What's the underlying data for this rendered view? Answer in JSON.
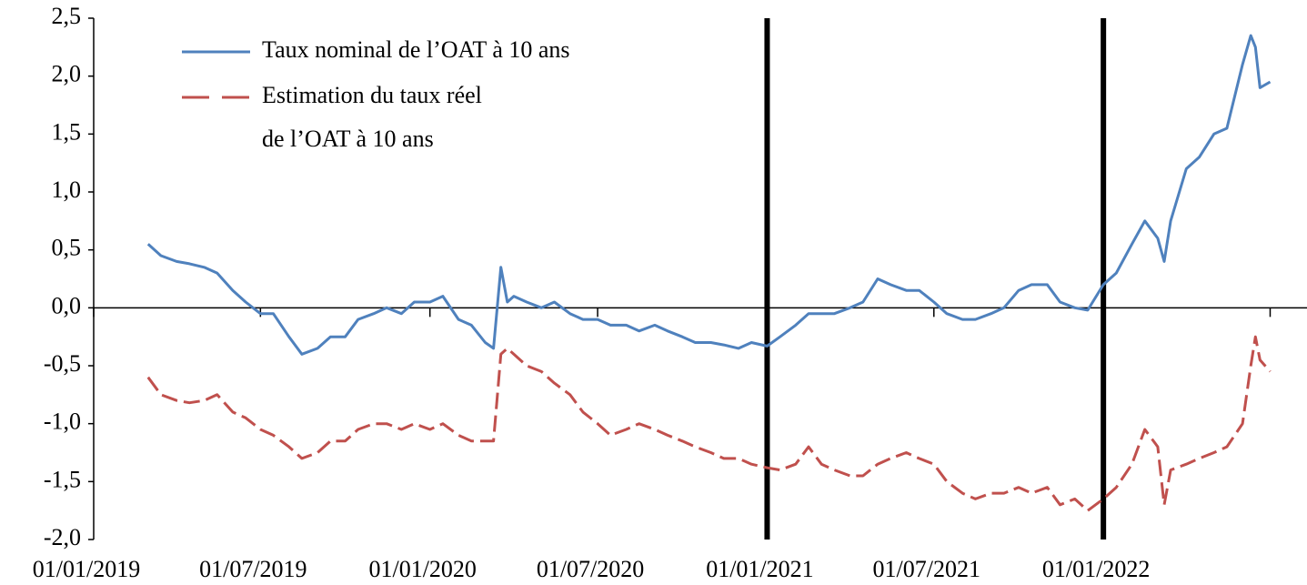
{
  "chart_data": {
    "type": "line",
    "x": [
      "01/03/2019",
      "15/03/2019",
      "01/04/2019",
      "15/04/2019",
      "01/05/2019",
      "15/05/2019",
      "01/06/2019",
      "15/06/2019",
      "01/07/2019",
      "15/07/2019",
      "01/08/2019",
      "15/08/2019",
      "01/09/2019",
      "15/09/2019",
      "01/10/2019",
      "15/10/2019",
      "01/11/2019",
      "15/11/2019",
      "01/12/2019",
      "15/12/2019",
      "01/01/2020",
      "15/01/2020",
      "01/02/2020",
      "15/02/2020",
      "01/03/2020",
      "10/03/2020",
      "18/03/2020",
      "25/03/2020",
      "01/04/2020",
      "15/04/2020",
      "01/05/2020",
      "15/05/2020",
      "01/06/2020",
      "15/06/2020",
      "01/07/2020",
      "15/07/2020",
      "01/08/2020",
      "15/08/2020",
      "01/09/2020",
      "15/09/2020",
      "01/10/2020",
      "15/10/2020",
      "01/11/2020",
      "15/11/2020",
      "01/12/2020",
      "15/12/2020",
      "01/01/2021",
      "15/01/2021",
      "01/02/2021",
      "15/02/2021",
      "01/03/2021",
      "15/03/2021",
      "01/04/2021",
      "15/04/2021",
      "01/05/2021",
      "15/05/2021",
      "01/06/2021",
      "15/06/2021",
      "01/07/2021",
      "15/07/2021",
      "01/08/2021",
      "15/08/2021",
      "01/09/2021",
      "15/09/2021",
      "01/10/2021",
      "15/10/2021",
      "01/11/2021",
      "15/11/2021",
      "01/12/2021",
      "15/12/2021",
      "01/01/2022",
      "15/01/2022",
      "01/02/2022",
      "15/02/2022",
      "01/03/2022",
      "08/03/2022",
      "15/03/2022",
      "01/04/2022",
      "15/04/2022",
      "01/05/2022",
      "15/05/2022",
      "01/06/2022",
      "10/06/2022",
      "15/06/2022",
      "20/06/2022",
      "01/07/2022"
    ],
    "series": [
      {
        "name": "Taux nominal de l’OAT à 10 ans",
        "color": "#4f81bd",
        "dashed": false,
        "values": [
          0.55,
          0.45,
          0.4,
          0.38,
          0.35,
          0.3,
          0.15,
          0.05,
          -0.05,
          -0.05,
          -0.25,
          -0.4,
          -0.35,
          -0.25,
          -0.25,
          -0.1,
          -0.05,
          0.0,
          -0.05,
          0.05,
          0.05,
          0.1,
          -0.1,
          -0.15,
          -0.3,
          -0.35,
          0.35,
          0.05,
          0.1,
          0.05,
          0.0,
          0.05,
          -0.05,
          -0.1,
          -0.1,
          -0.15,
          -0.15,
          -0.2,
          -0.15,
          -0.2,
          -0.25,
          -0.3,
          -0.3,
          -0.32,
          -0.35,
          -0.3,
          -0.33,
          -0.25,
          -0.15,
          -0.05,
          -0.05,
          -0.05,
          0.0,
          0.05,
          0.25,
          0.2,
          0.15,
          0.15,
          0.05,
          -0.05,
          -0.1,
          -0.1,
          -0.05,
          0.0,
          0.15,
          0.2,
          0.2,
          0.05,
          0.0,
          -0.02,
          0.2,
          0.3,
          0.55,
          0.75,
          0.6,
          0.4,
          0.75,
          1.2,
          1.3,
          1.5,
          1.55,
          2.1,
          2.35,
          2.25,
          1.9,
          1.95
        ]
      },
      {
        "name": "Estimation du taux réel\nde l’OAT à 10 ans",
        "color": "#c0504d",
        "dashed": true,
        "values": [
          -0.6,
          -0.75,
          -0.8,
          -0.82,
          -0.8,
          -0.75,
          -0.9,
          -0.95,
          -1.05,
          -1.1,
          -1.2,
          -1.3,
          -1.25,
          -1.15,
          -1.15,
          -1.05,
          -1.0,
          -1.0,
          -1.05,
          -1.0,
          -1.05,
          -1.0,
          -1.1,
          -1.15,
          -1.15,
          -1.15,
          -0.4,
          -0.35,
          -0.4,
          -0.5,
          -0.55,
          -0.65,
          -0.75,
          -0.9,
          -1.0,
          -1.1,
          -1.05,
          -1.0,
          -1.05,
          -1.1,
          -1.15,
          -1.2,
          -1.25,
          -1.3,
          -1.3,
          -1.35,
          -1.38,
          -1.4,
          -1.35,
          -1.2,
          -1.35,
          -1.4,
          -1.45,
          -1.45,
          -1.35,
          -1.3,
          -1.25,
          -1.3,
          -1.35,
          -1.5,
          -1.6,
          -1.65,
          -1.6,
          -1.6,
          -1.55,
          -1.6,
          -1.55,
          -1.7,
          -1.65,
          -1.75,
          -1.65,
          -1.55,
          -1.35,
          -1.05,
          -1.2,
          -1.7,
          -1.4,
          -1.35,
          -1.3,
          -1.25,
          -1.2,
          -1.0,
          -0.5,
          -0.25,
          -0.45,
          -0.55
        ]
      }
    ],
    "xlim": [
      "01/01/2019",
      "10/08/2022"
    ],
    "xticks": [
      "01/01/2019",
      "01/07/2019",
      "01/01/2020",
      "01/07/2020",
      "01/01/2021",
      "01/07/2021",
      "01/01/2022",
      {
        "value": "01/07/2022",
        "label": null
      }
    ],
    "ylim": [
      -2.0,
      2.5
    ],
    "yticks": [
      {
        "value": -2.0,
        "label": "-2,0"
      },
      {
        "value": -1.5,
        "label": "-1,5"
      },
      {
        "value": -1.0,
        "label": "-1,0"
      },
      {
        "value": -0.5,
        "label": "-0,5"
      },
      {
        "value": 0.0,
        "label": "0,0"
      },
      {
        "value": 0.5,
        "label": "0,5"
      },
      {
        "value": 1.0,
        "label": "1,0"
      },
      {
        "value": 1.5,
        "label": "1,5"
      },
      {
        "value": 2.0,
        "label": "2,0"
      },
      {
        "value": 2.5,
        "label": "2,5"
      }
    ],
    "vlines": [
      "01/01/2021",
      "01/01/2022"
    ],
    "legend": "upper left",
    "grid": false
  }
}
